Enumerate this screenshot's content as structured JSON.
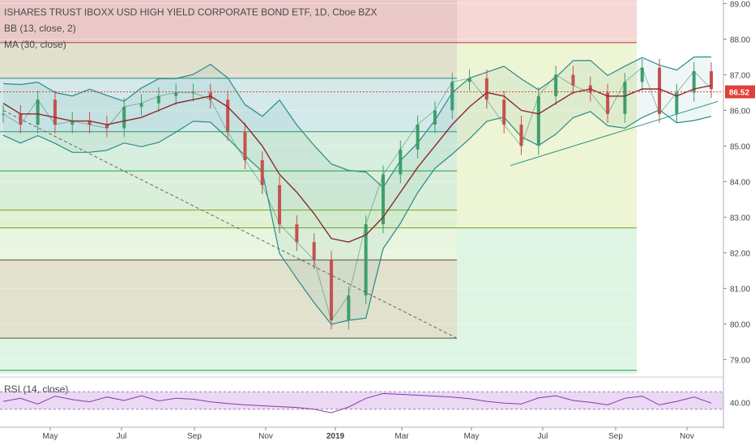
{
  "chart_data": {
    "type": "line",
    "title": "ISHARES TRUST IBOXX USD HIGH YIELD CORPORATE BOND ETF, 1D, Cboe BZX",
    "indicators": [
      "BB (13, close, 2)",
      "MA (30, close)"
    ],
    "last_price_label": "86.52",
    "last_price": 86.52,
    "ylim": [
      78.6,
      89.1
    ],
    "y_ticks": [
      "89.00",
      "88.00",
      "87.00",
      "86.00",
      "85.00",
      "84.00",
      "83.00",
      "82.00",
      "81.00",
      "80.00",
      "79.00"
    ],
    "x_ticks": [
      "May",
      "Jul",
      "Sep",
      "Nov",
      "2019",
      "Mar",
      "May",
      "Jul",
      "Sep",
      "Nov"
    ],
    "series": [
      {
        "x": [
          "2018-04-01",
          "2018-04-15",
          "2018-05-01",
          "2018-05-15",
          "2018-06-01",
          "2018-06-15",
          "2018-07-01",
          "2018-07-15",
          "2018-08-01",
          "2018-08-15",
          "2018-09-01",
          "2018-09-15",
          "2018-10-01",
          "2018-10-15",
          "2018-11-01",
          "2018-11-15",
          "2018-12-01",
          "2018-12-10",
          "2018-12-17",
          "2018-12-24",
          "2019-01-02",
          "2019-01-15",
          "2019-02-01",
          "2019-02-15",
          "2019-03-01",
          "2019-03-15",
          "2019-04-01",
          "2019-04-15",
          "2019-05-01",
          "2019-05-15",
          "2019-06-01",
          "2019-06-15",
          "2019-07-01",
          "2019-07-15",
          "2019-08-01",
          "2019-08-15",
          "2019-09-01",
          "2019-09-15",
          "2019-10-01",
          "2019-10-15",
          "2019-11-01",
          "2019-11-15"
        ],
        "values": [
          85.9,
          85.6,
          86.3,
          85.6,
          85.7,
          85.6,
          85.5,
          86.1,
          86.2,
          86.4,
          86.5,
          86.5,
          86.3,
          85.4,
          84.6,
          83.9,
          82.8,
          82.3,
          81.8,
          80.1,
          80.8,
          82.8,
          84.2,
          84.9,
          85.6,
          86.0,
          86.8,
          86.9,
          86.3,
          85.6,
          85.0,
          86.4,
          87.0,
          86.7,
          86.5,
          85.9,
          86.8,
          87.2,
          85.9,
          86.5,
          87.1,
          86.6
        ]
      },
      {
        "name": "MA (30, close)",
        "values": [
          86.2,
          85.9,
          85.9,
          85.8,
          85.7,
          85.7,
          85.6,
          85.7,
          85.8,
          86.0,
          86.2,
          86.3,
          86.4,
          86.1,
          85.6,
          85.0,
          84.2,
          83.7,
          83.1,
          82.4,
          82.3,
          82.5,
          83.0,
          83.7,
          84.4,
          85.0,
          85.6,
          86.1,
          86.5,
          86.4,
          86.0,
          85.9,
          86.2,
          86.5,
          86.6,
          86.4,
          86.4,
          86.6,
          86.6,
          86.4,
          86.6,
          86.7
        ]
      }
    ],
    "rsi": {
      "label": "RSI (14, close)",
      "y_tick": "40.00",
      "values": [
        48,
        55,
        42,
        60,
        52,
        47,
        58,
        50,
        61,
        49,
        55,
        53,
        47,
        43,
        40,
        38,
        36,
        34,
        30,
        22,
        35,
        55,
        66,
        64,
        62,
        60,
        58,
        54,
        48,
        44,
        42,
        56,
        61,
        50,
        46,
        40,
        55,
        60,
        40,
        48,
        58,
        44
      ]
    },
    "colors": {
      "price": "#2e7d5b",
      "ma": "#8b2a2a",
      "bollinger": "#2a8a8a",
      "last_price": "#e0403a"
    }
  }
}
